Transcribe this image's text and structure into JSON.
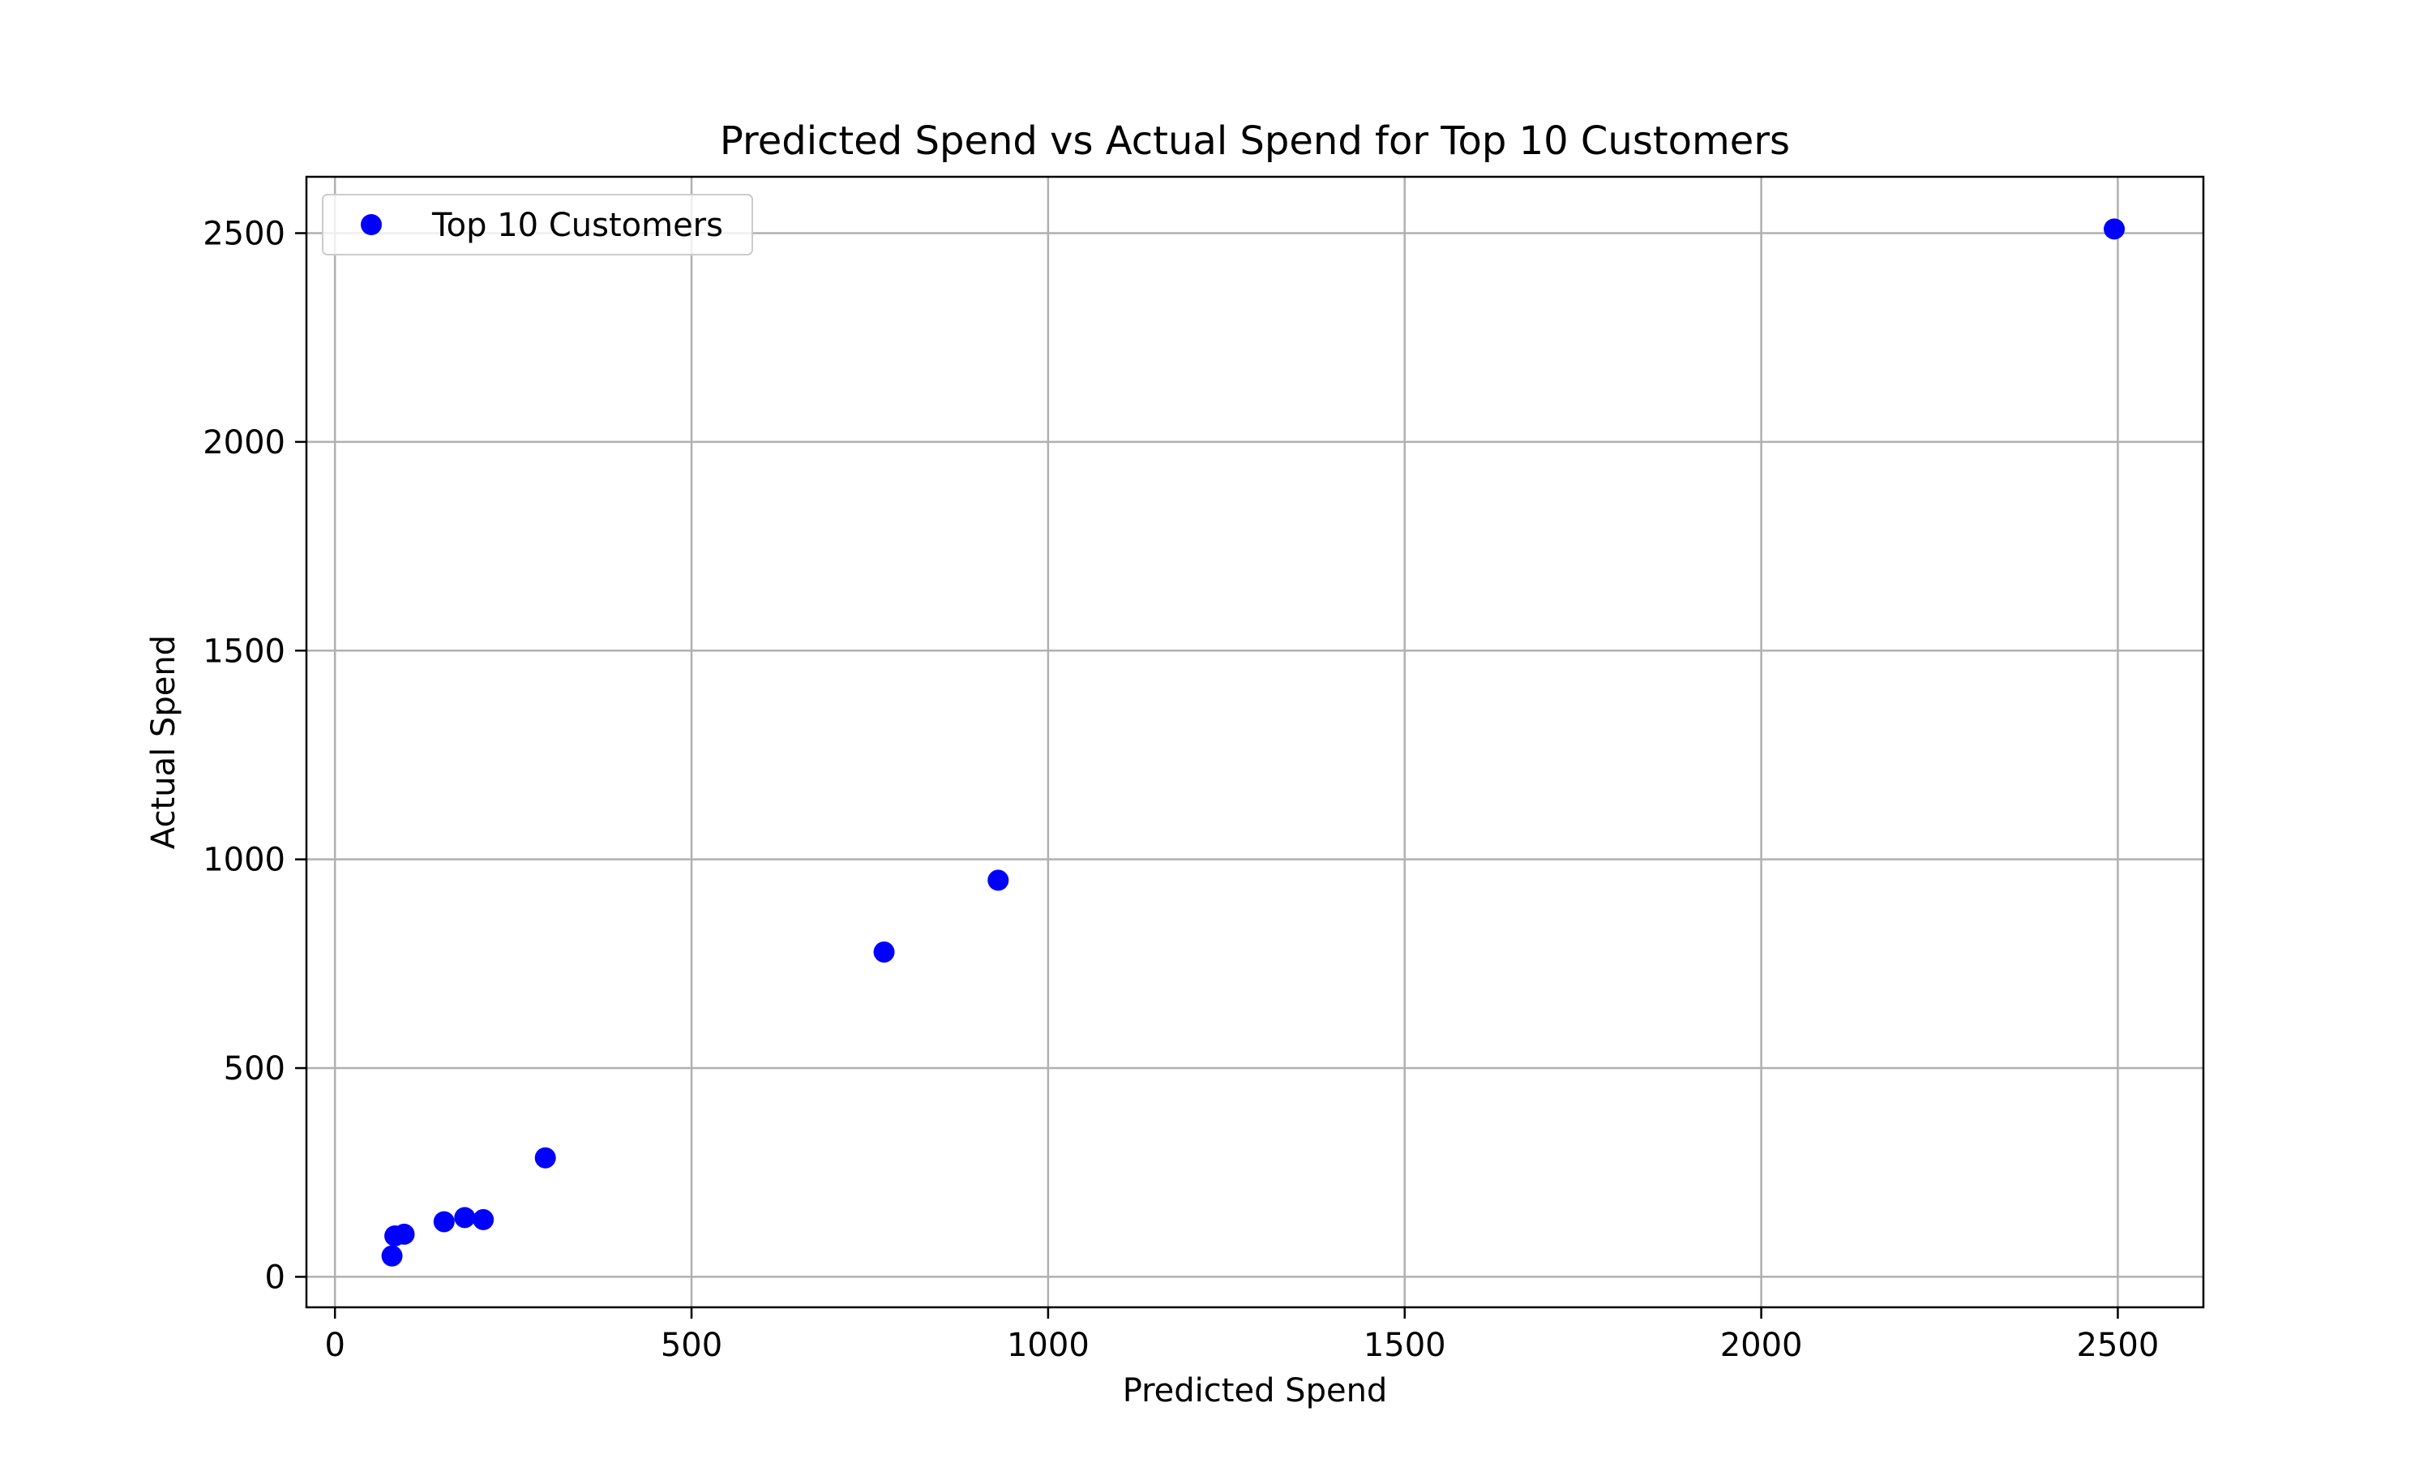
{
  "chart_data": {
    "type": "scatter",
    "title": "Predicted Spend vs Actual Spend for Top 10 Customers",
    "xlabel": "Predicted Spend",
    "ylabel": "Actual Spend",
    "xlim": [
      -40,
      2620
    ],
    "ylim": [
      -73,
      2635
    ],
    "xticks": [
      0,
      500,
      1000,
      1500,
      2000,
      2500
    ],
    "yticks": [
      0,
      500,
      1000,
      1500,
      2000,
      2500
    ],
    "grid": true,
    "legend_position": "upper-left",
    "series": [
      {
        "name": "Top 10 Customers",
        "color": "#0000ff",
        "points": [
          {
            "x": 2495,
            "y": 2510
          },
          {
            "x": 930,
            "y": 950
          },
          {
            "x": 770,
            "y": 778
          },
          {
            "x": 295,
            "y": 285
          },
          {
            "x": 182,
            "y": 142
          },
          {
            "x": 208,
            "y": 137
          },
          {
            "x": 153,
            "y": 132
          },
          {
            "x": 97,
            "y": 102
          },
          {
            "x": 84,
            "y": 98
          },
          {
            "x": 80,
            "y": 50
          }
        ]
      }
    ]
  }
}
